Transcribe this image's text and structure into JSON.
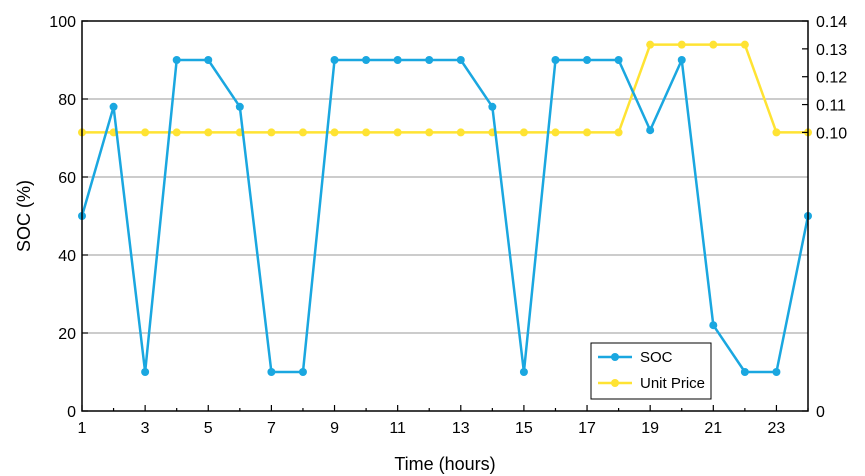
{
  "chart_data": {
    "type": "line",
    "xlabel": "Time (hours)",
    "ylabel": "SOC (%)",
    "x": [
      1,
      2,
      3,
      4,
      5,
      6,
      7,
      8,
      9,
      10,
      11,
      12,
      13,
      14,
      15,
      16,
      17,
      18,
      19,
      20,
      21,
      22,
      23,
      24
    ],
    "xlim": [
      1,
      24
    ],
    "x_ticks": [
      1,
      3,
      5,
      7,
      9,
      11,
      13,
      15,
      17,
      19,
      21,
      23
    ],
    "y_left": {
      "lim": [
        0,
        100
      ],
      "ticks": [
        0,
        20,
        40,
        60,
        80,
        100
      ]
    },
    "y_right": {
      "lim": [
        0,
        0.14
      ],
      "ticks": [
        0,
        0.1,
        0.11,
        0.12,
        0.13,
        0.14
      ],
      "tick_labels": [
        "0",
        "0.10",
        "0.11",
        "0.12",
        "0.13",
        "0.14"
      ]
    },
    "grid": "horizontal",
    "legend_position": "bottom-right",
    "series": [
      {
        "name": "SOC",
        "axis": "left",
        "color": "#1AA7E0",
        "values": [
          50,
          78,
          10,
          90,
          90,
          78,
          10,
          10,
          90,
          90,
          90,
          90,
          90,
          78,
          10,
          90,
          90,
          90,
          72,
          90,
          22,
          10,
          10,
          50
        ]
      },
      {
        "name": "Unit Price",
        "axis": "right",
        "color": "#FFE333",
        "values": [
          0.1,
          0.1,
          0.1,
          0.1,
          0.1,
          0.1,
          0.1,
          0.1,
          0.1,
          0.1,
          0.1,
          0.1,
          0.1,
          0.1,
          0.1,
          0.1,
          0.1,
          0.1,
          0.1315,
          0.1315,
          0.1315,
          0.1315,
          0.1,
          0.1
        ]
      }
    ]
  }
}
